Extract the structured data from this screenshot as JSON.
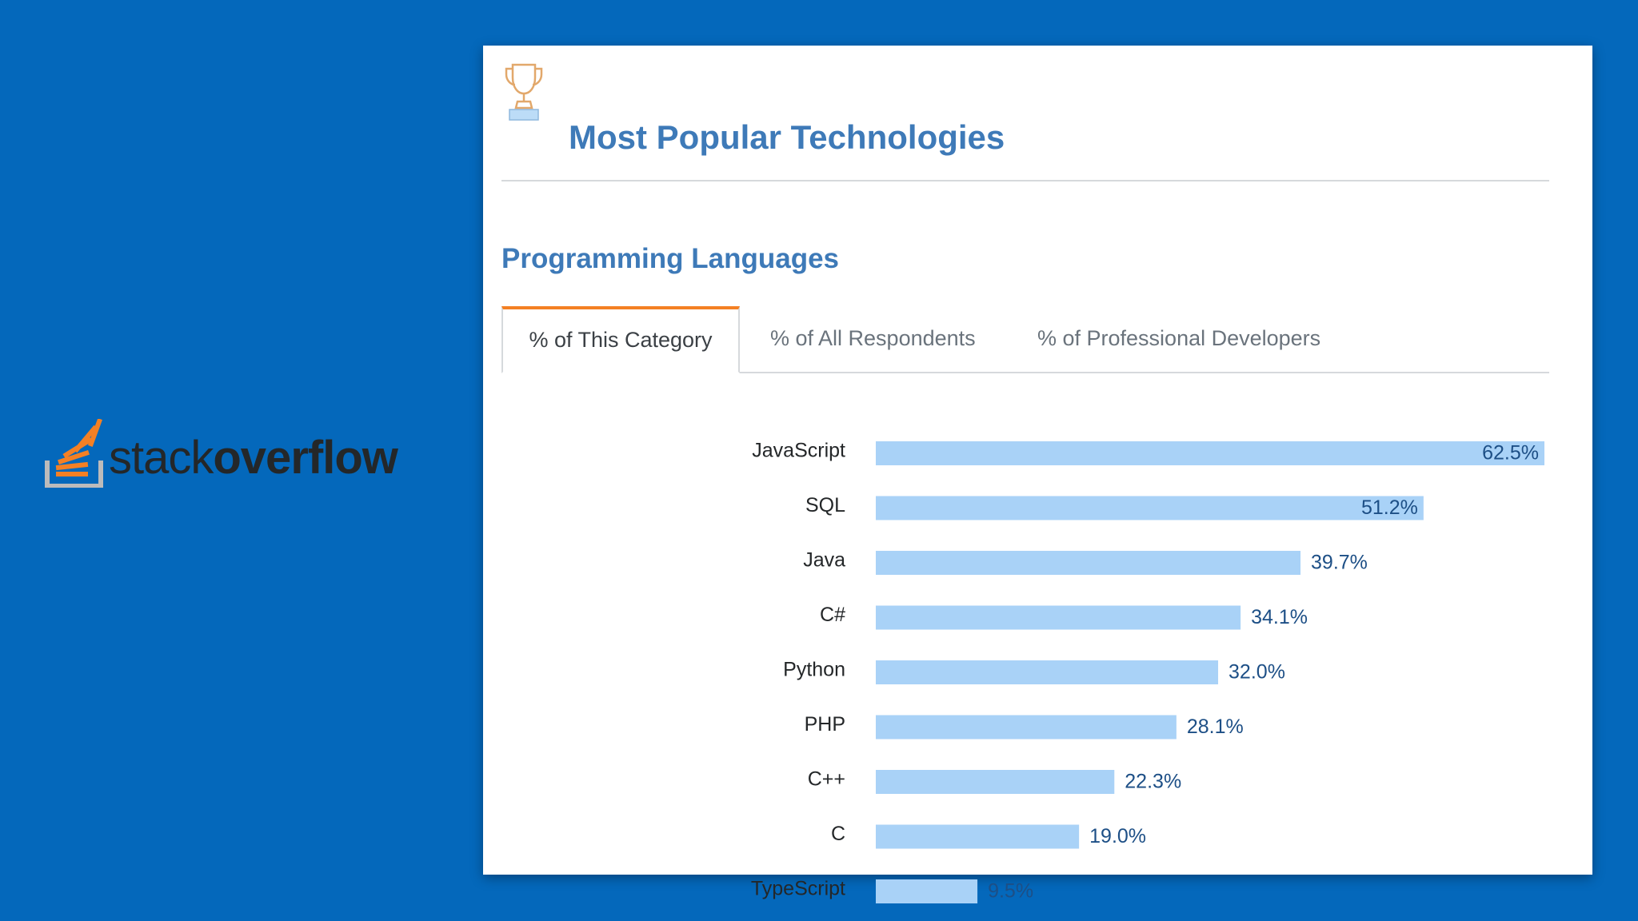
{
  "brand": {
    "name_part1": "stack",
    "name_part2": "overflow"
  },
  "card": {
    "title": "Most Popular Technologies",
    "icon": "trophy-icon"
  },
  "section": {
    "title": "Programming Languages"
  },
  "tabs": [
    {
      "label": "% of This Category",
      "active": true
    },
    {
      "label": "% of All Respondents",
      "active": false
    },
    {
      "label": "% of Professional Developers",
      "active": false
    }
  ],
  "colors": {
    "background": "#0468bb",
    "bar": "#a9d2f7",
    "title": "#3e7ab8",
    "accent": "#f48024",
    "value_text": "#1d4f86"
  },
  "chart_data": {
    "type": "bar",
    "orientation": "horizontal",
    "title": "Programming Languages",
    "categories": [
      "JavaScript",
      "SQL",
      "Java",
      "C#",
      "Python",
      "PHP",
      "C++",
      "C",
      "TypeScript"
    ],
    "values": [
      62.5,
      51.2,
      39.7,
      34.1,
      32.0,
      28.1,
      22.3,
      19.0,
      9.5
    ],
    "value_labels": [
      "62.5%",
      "51.2%",
      "39.7%",
      "34.1%",
      "32.0%",
      "28.1%",
      "22.3%",
      "19.0%",
      "9.5%"
    ],
    "xlim": [
      0,
      62.5
    ],
    "grid": false,
    "xlabel": "",
    "ylabel": ""
  }
}
